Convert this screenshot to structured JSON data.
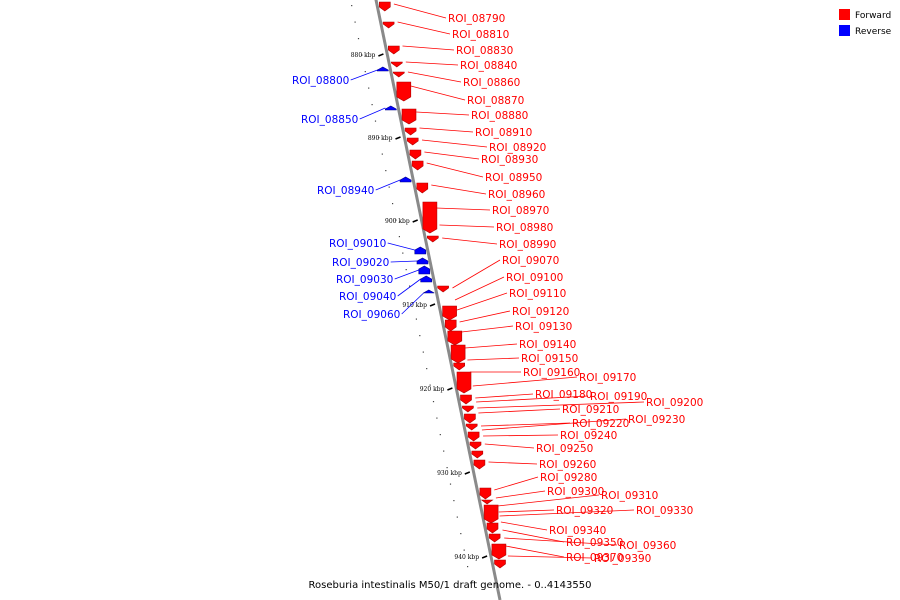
{
  "title": "Roseburia intestinalis M50/1 draft genome. - 0..4143550",
  "legend": [
    {
      "label": "Forward",
      "color": "#ff0000"
    },
    {
      "label": "Reverse",
      "color": "#0000ff"
    }
  ],
  "ticks": [
    "880 kbp",
    "890 kbp",
    "900 kbp",
    "910 kbp",
    "920 kbp",
    "930 kbp",
    "940 kbp"
  ],
  "forward_labels": [
    "ROI_08790",
    "ROI_08810",
    "ROI_08830",
    "ROI_08840",
    "ROI_08860",
    "ROI_08870",
    "ROI_08880",
    "ROI_08910",
    "ROI_08920",
    "ROI_08930",
    "ROI_08950",
    "ROI_08960",
    "ROI_08970",
    "ROI_08980",
    "ROI_08990",
    "ROI_09070",
    "ROI_09100",
    "ROI_09110",
    "ROI_09120",
    "ROI_09130",
    "ROI_09140",
    "ROI_09150",
    "ROI_09160",
    "ROI_09170",
    "ROI_09180",
    "ROI_09190",
    "ROI_09200",
    "ROI_09210",
    "ROI_09220",
    "ROI_09230",
    "ROI_09240",
    "ROI_09250",
    "ROI_09260",
    "ROI_09280",
    "ROI_09300",
    "ROI_09310",
    "ROI_09320",
    "ROI_09330",
    "ROI_09340",
    "ROI_09350",
    "ROI_09360",
    "ROI_09370",
    "ROI_09390"
  ],
  "reverse_labels": [
    "ROI_08800",
    "ROI_08850",
    "ROI_08940",
    "ROI_09010",
    "ROI_09020",
    "ROI_09030",
    "ROI_09040",
    "ROI_09060"
  ]
}
